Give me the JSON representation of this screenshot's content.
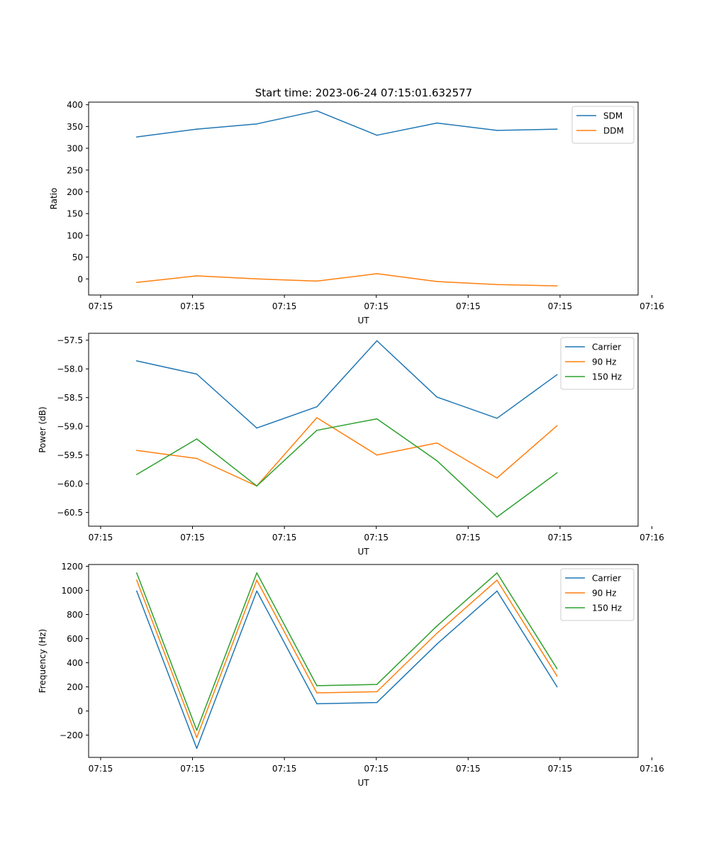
{
  "figure": {
    "title": "Start time: 2023-06-24 07:15:01.632577"
  },
  "chart_data": [
    {
      "type": "line",
      "title": "Start time: 2023-06-24 07:15:01.632577",
      "xlabel": "UT",
      "ylabel": "Ratio",
      "x": [
        1,
        2,
        3,
        4,
        5,
        6,
        7,
        8
      ],
      "xlim": [
        0.2,
        9.35
      ],
      "xticks": {
        "values": [
          0.4,
          1.93,
          3.46,
          4.99,
          6.52,
          8.05,
          9.58
        ],
        "labels": [
          "07:15",
          "07:15",
          "07:15",
          "07:15",
          "07:15",
          "07:15",
          "07:16"
        ]
      },
      "ylim": [
        -37,
        406
      ],
      "yticks": [
        0,
        50,
        100,
        150,
        200,
        250,
        300,
        350,
        400
      ],
      "yticklabels": [
        "0",
        "50",
        "100",
        "150",
        "200",
        "250",
        "300",
        "350",
        "400"
      ],
      "legend": "top-right",
      "grid": false,
      "series": [
        {
          "name": "SDM",
          "color": "#1f77b4",
          "values": [
            326,
            344,
            356,
            386,
            330,
            358,
            341,
            344
          ]
        },
        {
          "name": "DDM",
          "color": "#ff7f0e",
          "values": [
            -8,
            7,
            0,
            -5,
            12,
            -6,
            -13,
            -16
          ]
        }
      ]
    },
    {
      "type": "line",
      "title": "",
      "xlabel": "UT",
      "ylabel": "Power (dB)",
      "x": [
        1,
        2,
        3,
        4,
        5,
        6,
        7,
        8
      ],
      "xlim": [
        0.2,
        9.35
      ],
      "xticks": {
        "values": [
          0.4,
          1.93,
          3.46,
          4.99,
          6.52,
          8.05,
          9.58
        ],
        "labels": [
          "07:15",
          "07:15",
          "07:15",
          "07:15",
          "07:15",
          "07:15",
          "07:16"
        ]
      },
      "ylim": [
        -60.74,
        -57.38
      ],
      "yticks": [
        -60.5,
        -60.0,
        -59.5,
        -59.0,
        -58.5,
        -58.0,
        -57.5
      ],
      "yticklabels": [
        "−60.5",
        "−60.0",
        "−59.5",
        "−59.0",
        "−58.5",
        "−58.0",
        "−57.5"
      ],
      "legend": "top-right",
      "grid": false,
      "series": [
        {
          "name": "Carrier",
          "color": "#1f77b4",
          "values": [
            -57.86,
            -58.09,
            -59.03,
            -58.66,
            -57.51,
            -58.49,
            -58.86,
            -58.1
          ]
        },
        {
          "name": "90 Hz",
          "color": "#ff7f0e",
          "values": [
            -59.42,
            -59.56,
            -60.04,
            -58.85,
            -59.5,
            -59.29,
            -59.9,
            -58.99
          ]
        },
        {
          "name": "150 Hz",
          "color": "#2ca02c",
          "values": [
            -59.84,
            -59.22,
            -60.04,
            -59.07,
            -58.87,
            -59.6,
            -60.58,
            -59.81
          ]
        }
      ]
    },
    {
      "type": "line",
      "title": "",
      "xlabel": "UT",
      "ylabel": "Frequency (Hz)",
      "x": [
        1,
        2,
        3,
        4,
        5,
        6,
        7,
        8
      ],
      "xlim": [
        0.2,
        9.35
      ],
      "xticks": {
        "values": [
          0.4,
          1.93,
          3.46,
          4.99,
          6.52,
          8.05,
          9.58
        ],
        "labels": [
          "07:15",
          "07:15",
          "07:15",
          "07:15",
          "07:15",
          "07:15",
          "07:16"
        ]
      },
      "ylim": [
        -385,
        1215
      ],
      "yticks": [
        -200,
        0,
        200,
        400,
        600,
        800,
        1000,
        1200
      ],
      "yticklabels": [
        "−200",
        "0",
        "200",
        "400",
        "600",
        "800",
        "1000",
        "1200"
      ],
      "legend": "top-right",
      "grid": false,
      "series": [
        {
          "name": "Carrier",
          "color": "#1f77b4",
          "values": [
            995,
            -310,
            995,
            60,
            70,
            555,
            995,
            200
          ]
        },
        {
          "name": "90 Hz",
          "color": "#ff7f0e",
          "values": [
            1085,
            -220,
            1085,
            150,
            160,
            645,
            1085,
            290
          ]
        },
        {
          "name": "150 Hz",
          "color": "#2ca02c",
          "values": [
            1145,
            -160,
            1145,
            210,
            220,
            705,
            1145,
            350
          ]
        }
      ]
    }
  ]
}
